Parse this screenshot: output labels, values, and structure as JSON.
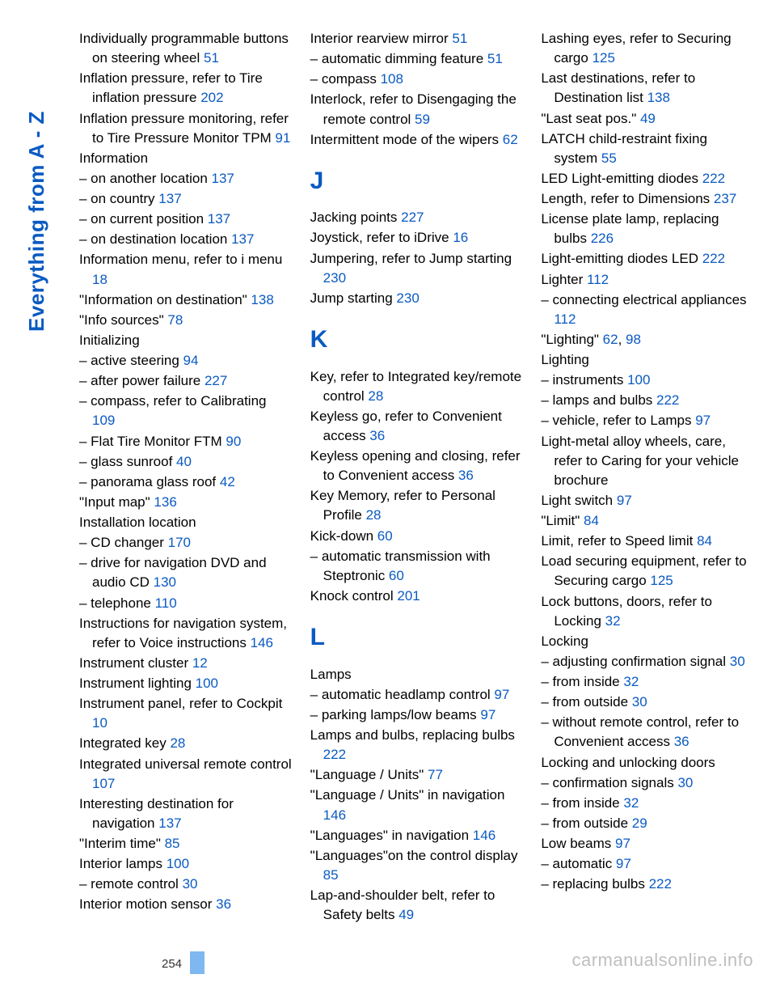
{
  "sideLabel": "Everything from A - Z",
  "pageNumber": "254",
  "watermark": "carmanualsonline.info",
  "colors": {
    "link": "#0a5ac2",
    "text": "#000000",
    "watermark": "#bfbfbf",
    "tab": "#7fb8f0"
  },
  "entries": [
    {
      "t": "Individually programmable buttons on steering wheel ",
      "p": "51"
    },
    {
      "t": "Inflation pressure, refer to Tire inflation pressure ",
      "p": "202"
    },
    {
      "t": "Inflation pressure monitoring, refer to Tire Pressure Monitor TPM ",
      "p": "91"
    },
    {
      "t": "Information"
    },
    {
      "t": "– on another location ",
      "p": "137",
      "sub": true
    },
    {
      "t": "– on country ",
      "p": "137",
      "sub": true
    },
    {
      "t": "– on current position ",
      "p": "137",
      "sub": true
    },
    {
      "t": "– on destination location ",
      "p": "137",
      "sub": true
    },
    {
      "t": "Information menu, refer to i menu ",
      "p": "18"
    },
    {
      "t": "\"Information on destination\" ",
      "p": "138"
    },
    {
      "t": "\"Info sources\" ",
      "p": "78"
    },
    {
      "t": "Initializing"
    },
    {
      "t": "– active steering ",
      "p": "94",
      "sub": true
    },
    {
      "t": "– after power failure ",
      "p": "227",
      "sub": true
    },
    {
      "t": "– compass, refer to Calibrating ",
      "p": "109",
      "sub": true
    },
    {
      "t": "– Flat Tire Monitor FTM ",
      "p": "90",
      "sub": true
    },
    {
      "t": "– glass sunroof ",
      "p": "40",
      "sub": true
    },
    {
      "t": "– panorama glass roof ",
      "p": "42",
      "sub": true
    },
    {
      "t": "\"Input map\" ",
      "p": "136"
    },
    {
      "t": "Installation location"
    },
    {
      "t": "– CD changer ",
      "p": "170",
      "sub": true
    },
    {
      "t": "– drive for navigation DVD and audio CD ",
      "p": "130",
      "sub": true
    },
    {
      "t": "– telephone ",
      "p": "110",
      "sub": true
    },
    {
      "t": "Instructions for navigation system, refer to Voice instructions ",
      "p": "146"
    },
    {
      "t": "Instrument cluster ",
      "p": "12"
    },
    {
      "t": "Instrument lighting ",
      "p": "100"
    },
    {
      "t": "Instrument panel, refer to Cockpit ",
      "p": "10"
    },
    {
      "t": "Integrated key ",
      "p": "28"
    },
    {
      "t": "Integrated universal remote control ",
      "p": "107"
    },
    {
      "t": "Interesting destination for navigation ",
      "p": "137"
    },
    {
      "t": "\"Interim time\" ",
      "p": "85"
    },
    {
      "t": "Interior lamps ",
      "p": "100"
    },
    {
      "t": "– remote control ",
      "p": "30",
      "sub": true
    },
    {
      "t": "Interior motion sensor ",
      "p": "36"
    },
    {
      "t": "Interior rearview mirror ",
      "p": "51"
    },
    {
      "t": "– automatic dimming feature ",
      "p": "51",
      "sub": true
    },
    {
      "t": "– compass ",
      "p": "108",
      "sub": true
    },
    {
      "t": "Interlock, refer to Disengaging the remote control ",
      "p": "59"
    },
    {
      "t": "Intermittent mode of the wipers ",
      "p": "62"
    },
    {
      "letter": "J"
    },
    {
      "t": "Jacking points ",
      "p": "227"
    },
    {
      "t": "Joystick, refer to iDrive ",
      "p": "16"
    },
    {
      "t": "Jumpering, refer to Jump starting ",
      "p": "230"
    },
    {
      "t": "Jump starting ",
      "p": "230"
    },
    {
      "letter": "K"
    },
    {
      "t": "Key, refer to Integrated key/remote control ",
      "p": "28"
    },
    {
      "t": "Keyless go, refer to Convenient access ",
      "p": "36"
    },
    {
      "t": "Keyless opening and closing, refer to Convenient access ",
      "p": "36"
    },
    {
      "t": "Key Memory, refer to Personal Profile ",
      "p": "28"
    },
    {
      "t": "Kick-down ",
      "p": "60"
    },
    {
      "t": "– automatic transmission with Steptronic ",
      "p": "60",
      "sub": true
    },
    {
      "t": "Knock control ",
      "p": "201"
    },
    {
      "letter": "L"
    },
    {
      "t": "Lamps"
    },
    {
      "t": "– automatic headlamp control ",
      "p": "97",
      "sub": true
    },
    {
      "t": "– parking lamps/low beams ",
      "p": "97",
      "sub": true
    },
    {
      "t": "Lamps and bulbs, replacing bulbs ",
      "p": "222"
    },
    {
      "t": "\"Language / Units\" ",
      "p": "77"
    },
    {
      "t": "\"Language / Units\" in navigation ",
      "p": "146"
    },
    {
      "t": "\"Languages\" in navigation ",
      "p": "146"
    },
    {
      "t": "\"Languages\"on the control display ",
      "p": "85"
    },
    {
      "t": "Lap-and-shoulder belt, refer to Safety belts ",
      "p": "49"
    },
    {
      "t": "Lashing eyes, refer to Securing cargo ",
      "p": "125"
    },
    {
      "t": "Last destinations, refer to Destination list ",
      "p": "138"
    },
    {
      "t": "\"Last seat pos.\" ",
      "p": "49"
    },
    {
      "t": "LATCH child-restraint fixing system ",
      "p": "55"
    },
    {
      "t": "LED Light-emitting diodes ",
      "p": "222"
    },
    {
      "t": "Length, refer to Dimensions ",
      "p": "237"
    },
    {
      "t": "License plate lamp, replacing bulbs ",
      "p": "226"
    },
    {
      "t": "Light-emitting diodes LED ",
      "p": "222"
    },
    {
      "t": "Lighter ",
      "p": "112"
    },
    {
      "t": "– connecting electrical appliances ",
      "p": "112",
      "sub": true
    },
    {
      "t": "\"Lighting\" ",
      "p2": [
        "62",
        "98"
      ]
    },
    {
      "t": "Lighting"
    },
    {
      "t": "– instruments ",
      "p": "100",
      "sub": true
    },
    {
      "t": "– lamps and bulbs ",
      "p": "222",
      "sub": true
    },
    {
      "t": "– vehicle, refer to Lamps ",
      "p": "97",
      "sub": true
    },
    {
      "t": "Light-metal alloy wheels, care, refer to Caring for your vehicle brochure"
    },
    {
      "t": "Light switch ",
      "p": "97"
    },
    {
      "t": "\"Limit\" ",
      "p": "84"
    },
    {
      "t": "Limit, refer to Speed limit ",
      "p": "84"
    },
    {
      "t": "Load securing equipment, refer to Securing cargo ",
      "p": "125"
    },
    {
      "t": "Lock buttons, doors, refer to Locking ",
      "p": "32"
    },
    {
      "t": "Locking"
    },
    {
      "t": "– adjusting confirmation signal ",
      "p": "30",
      "sub": true
    },
    {
      "t": "– from inside ",
      "p": "32",
      "sub": true
    },
    {
      "t": "– from outside ",
      "p": "30",
      "sub": true
    },
    {
      "t": "– without remote control, refer to Convenient access ",
      "p": "36",
      "sub": true
    },
    {
      "t": "Locking and unlocking doors"
    },
    {
      "t": "– confirmation signals ",
      "p": "30",
      "sub": true
    },
    {
      "t": "– from inside ",
      "p": "32",
      "sub": true
    },
    {
      "t": "– from outside ",
      "p": "29",
      "sub": true
    },
    {
      "t": "Low beams ",
      "p": "97"
    },
    {
      "t": "– automatic ",
      "p": "97",
      "sub": true
    },
    {
      "t": "– replacing bulbs ",
      "p": "222",
      "sub": true
    }
  ]
}
